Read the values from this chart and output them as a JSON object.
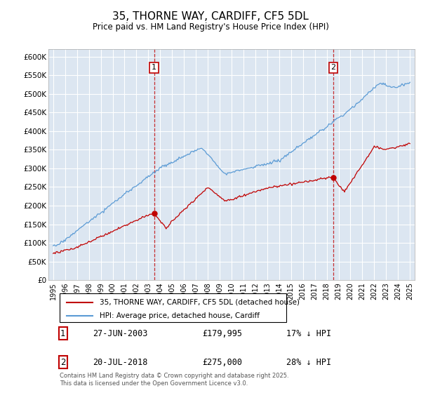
{
  "title": "35, THORNE WAY, CARDIFF, CF5 5DL",
  "subtitle": "Price paid vs. HM Land Registry's House Price Index (HPI)",
  "hpi_color": "#5b9bd5",
  "price_color": "#c00000",
  "plot_bg_color": "#dce6f1",
  "grid_color": "#ffffff",
  "ylim": [
    0,
    620000
  ],
  "yticks": [
    0,
    50000,
    100000,
    150000,
    200000,
    250000,
    300000,
    350000,
    400000,
    450000,
    500000,
    550000,
    600000
  ],
  "ytick_labels": [
    "£0",
    "£50K",
    "£100K",
    "£150K",
    "£200K",
    "£250K",
    "£300K",
    "£350K",
    "£400K",
    "£450K",
    "£500K",
    "£550K",
    "£600K"
  ],
  "sale1_year": 2003.49,
  "sale1_price": 179995,
  "sale2_year": 2018.55,
  "sale2_price": 275000,
  "legend_entry1": "35, THORNE WAY, CARDIFF, CF5 5DL (detached house)",
  "legend_entry2": "HPI: Average price, detached house, Cardiff",
  "table_row1": [
    "1",
    "27-JUN-2003",
    "£179,995",
    "17% ↓ HPI"
  ],
  "table_row2": [
    "2",
    "20-JUL-2018",
    "£275,000",
    "28% ↓ HPI"
  ],
  "footer": "Contains HM Land Registry data © Crown copyright and database right 2025.\nThis data is licensed under the Open Government Licence v3.0."
}
